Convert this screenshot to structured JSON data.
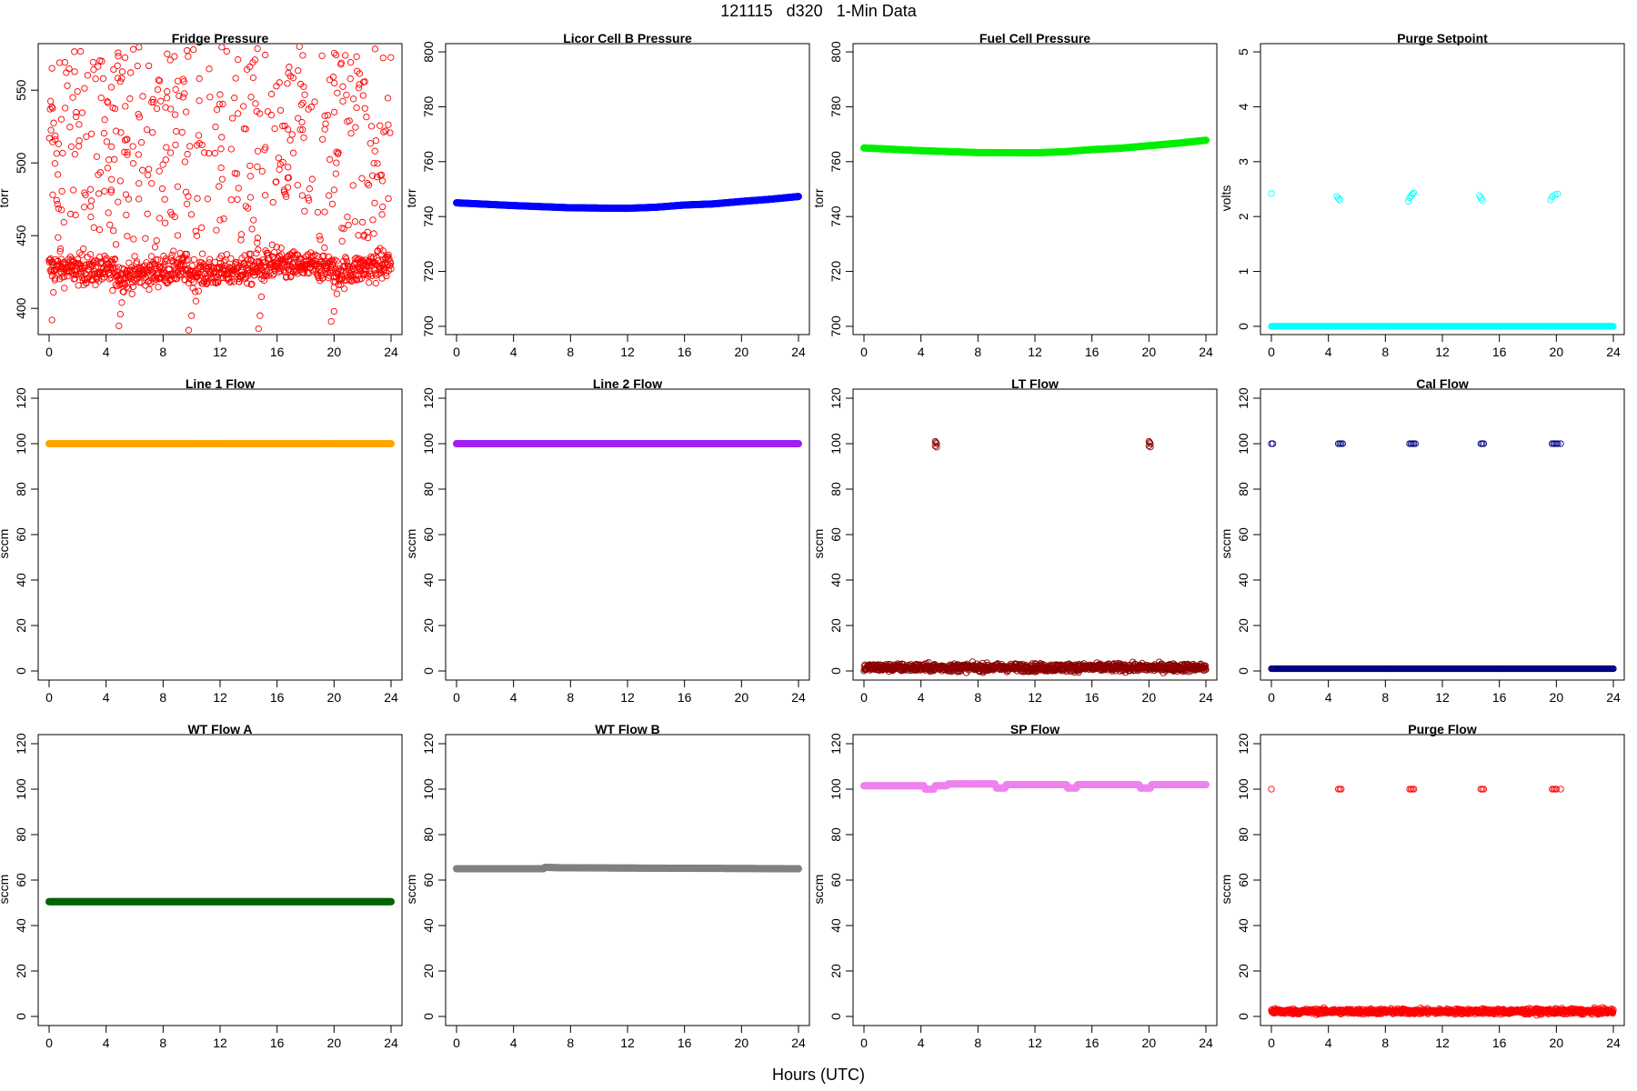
{
  "figure": {
    "title": "121115   d320   1-Min Data",
    "x_caption": "Hours (UTC)"
  },
  "chart_data": [
    {
      "type": "scatter",
      "title": "Fridge Pressure",
      "ylabel": "torr",
      "xlim": [
        0,
        24
      ],
      "ylim": [
        382,
        582
      ],
      "xticks": [
        0,
        4,
        8,
        12,
        16,
        20,
        24
      ],
      "yticks": [
        400,
        450,
        500,
        550
      ],
      "color": "#ff0000",
      "filled": false,
      "series": [
        {
          "pattern": "noisy",
          "points": [
            [
              0,
              428
            ],
            [
              4.7,
              425
            ],
            [
              5.0,
              422
            ],
            [
              9.5,
              428
            ],
            [
              10.0,
              424
            ],
            [
              14.8,
              427
            ],
            [
              15.2,
              429
            ],
            [
              19.7,
              429
            ],
            [
              20.0,
              424
            ],
            [
              24,
              431
            ]
          ],
          "noise": 7,
          "count": 900
        },
        {
          "pattern": "scatter-band",
          "range": [
            440,
            580
          ],
          "xrange": [
            0,
            24
          ],
          "count": 420
        },
        {
          "pattern": "dips",
          "points": [
            [
              0.2,
              392
            ],
            [
              0.3,
              411
            ],
            [
              4.9,
              388
            ],
            [
              5.0,
              396
            ],
            [
              5.1,
              404
            ],
            [
              9.8,
              385
            ],
            [
              10.0,
              395
            ],
            [
              10.3,
              405
            ],
            [
              14.7,
              386
            ],
            [
              14.8,
              395
            ],
            [
              14.9,
              408
            ],
            [
              19.8,
              391
            ],
            [
              20.0,
              398
            ],
            [
              20.2,
              410
            ]
          ]
        }
      ]
    },
    {
      "type": "line",
      "title": "Licor Cell B Pressure",
      "ylabel": "torr",
      "xlim": [
        0,
        24
      ],
      "ylim": [
        697,
        803
      ],
      "xticks": [
        0,
        4,
        8,
        12,
        16,
        20,
        24
      ],
      "yticks": [
        700,
        720,
        740,
        760,
        780,
        800
      ],
      "color": "#0000ff",
      "filled": true,
      "series": [
        {
          "pattern": "curve",
          "points": [
            [
              0,
              745
            ],
            [
              4,
              744
            ],
            [
              8,
              743.2
            ],
            [
              12,
              743
            ],
            [
              14,
              743.4
            ],
            [
              16,
              744.2
            ],
            [
              18,
              744.6
            ],
            [
              20,
              745.5
            ],
            [
              22,
              746.3
            ],
            [
              24,
              747.3
            ]
          ]
        }
      ]
    },
    {
      "type": "line",
      "title": "Fuel Cell Pressure",
      "ylabel": "torr",
      "xlim": [
        0,
        24
      ],
      "ylim": [
        697,
        803
      ],
      "xticks": [
        0,
        4,
        8,
        12,
        16,
        20,
        24
      ],
      "yticks": [
        700,
        720,
        740,
        760,
        780,
        800
      ],
      "color": "#00ee00",
      "filled": true,
      "series": [
        {
          "pattern": "curve",
          "points": [
            [
              0,
              765
            ],
            [
              4,
              764
            ],
            [
              8,
              763.3
            ],
            [
              12,
              763.2
            ],
            [
              14,
              763.6
            ],
            [
              16,
              764.4
            ],
            [
              18,
              764.9
            ],
            [
              20,
              765.8
            ],
            [
              22,
              766.7
            ],
            [
              24,
              767.8
            ]
          ]
        }
      ]
    },
    {
      "type": "scatter",
      "title": "Purge Setpoint",
      "ylabel": "volts",
      "xlim": [
        0,
        24
      ],
      "ylim": [
        -0.15,
        5.15
      ],
      "xticks": [
        0,
        4,
        8,
        12,
        16,
        20,
        24
      ],
      "yticks": [
        0,
        1,
        2,
        3,
        4,
        5
      ],
      "color": "#00ffff",
      "filled": false,
      "series": [
        {
          "pattern": "curve",
          "points": [
            [
              0,
              0
            ],
            [
              24,
              0
            ]
          ]
        },
        {
          "pattern": "dips",
          "points": [
            [
              0.0,
              2.42
            ],
            [
              4.6,
              2.37
            ],
            [
              4.7,
              2.33
            ],
            [
              4.8,
              2.3
            ],
            [
              9.6,
              2.28
            ],
            [
              9.7,
              2.34
            ],
            [
              9.8,
              2.38
            ],
            [
              9.9,
              2.41
            ],
            [
              10.0,
              2.43
            ],
            [
              14.6,
              2.38
            ],
            [
              14.7,
              2.34
            ],
            [
              14.8,
              2.3
            ],
            [
              19.6,
              2.3
            ],
            [
              19.7,
              2.36
            ],
            [
              19.9,
              2.4
            ],
            [
              20.1,
              2.41
            ]
          ]
        }
      ]
    },
    {
      "type": "line",
      "title": "Line 1 Flow",
      "ylabel": "sccm",
      "xlim": [
        0,
        24
      ],
      "ylim": [
        -4,
        124
      ],
      "xticks": [
        0,
        4,
        8,
        12,
        16,
        20,
        24
      ],
      "yticks": [
        0,
        20,
        40,
        60,
        80,
        100,
        120
      ],
      "color": "#ffa500",
      "filled": true,
      "series": [
        {
          "pattern": "curve",
          "points": [
            [
              0,
              100
            ],
            [
              24,
              100
            ]
          ]
        }
      ]
    },
    {
      "type": "line",
      "title": "Line 2 Flow",
      "ylabel": "sccm",
      "xlim": [
        0,
        24
      ],
      "ylim": [
        -4,
        124
      ],
      "xticks": [
        0,
        4,
        8,
        12,
        16,
        20,
        24
      ],
      "yticks": [
        0,
        20,
        40,
        60,
        80,
        100,
        120
      ],
      "color": "#a020f0",
      "filled": true,
      "series": [
        {
          "pattern": "curve",
          "points": [
            [
              0,
              100
            ],
            [
              24,
              100
            ]
          ]
        }
      ]
    },
    {
      "type": "scatter",
      "title": "LT Flow",
      "ylabel": "sccm",
      "xlim": [
        0,
        24
      ],
      "ylim": [
        -4,
        124
      ],
      "xticks": [
        0,
        4,
        8,
        12,
        16,
        20,
        24
      ],
      "yticks": [
        0,
        20,
        40,
        60,
        80,
        100,
        120
      ],
      "color": "#8b0000",
      "filled": false,
      "series": [
        {
          "pattern": "noisy",
          "points": [
            [
              0,
              1.5
            ],
            [
              24,
              1.5
            ]
          ],
          "noise": 1.2,
          "count": 1100
        },
        {
          "pattern": "dips",
          "points": [
            [
              5.0,
              101
            ],
            [
              5.1,
              100
            ],
            [
              5.0,
              99
            ],
            [
              5.1,
              98.5
            ],
            [
              5.05,
              100.5
            ],
            [
              20.0,
              101
            ],
            [
              20.1,
              100
            ],
            [
              20.0,
              99
            ],
            [
              20.1,
              98.5
            ],
            [
              20.05,
              100.5
            ]
          ]
        }
      ]
    },
    {
      "type": "scatter",
      "title": "Cal Flow",
      "ylabel": "sccm",
      "xlim": [
        0,
        24
      ],
      "ylim": [
        -4,
        124
      ],
      "xticks": [
        0,
        4,
        8,
        12,
        16,
        20,
        24
      ],
      "yticks": [
        0,
        20,
        40,
        60,
        80,
        100,
        120
      ],
      "color": "#000080",
      "filled": false,
      "series": [
        {
          "pattern": "curve",
          "points": [
            [
              0,
              1
            ],
            [
              24,
              1
            ]
          ]
        },
        {
          "pattern": "dips",
          "points": [
            [
              0.0,
              100
            ],
            [
              0.1,
              100
            ],
            [
              4.7,
              100
            ],
            [
              4.8,
              100
            ],
            [
              4.9,
              100
            ],
            [
              5.0,
              100
            ],
            [
              9.7,
              100
            ],
            [
              9.8,
              100
            ],
            [
              9.9,
              100
            ],
            [
              10.0,
              100
            ],
            [
              10.1,
              100
            ],
            [
              14.7,
              100
            ],
            [
              14.8,
              100
            ],
            [
              14.9,
              100
            ],
            [
              19.7,
              100
            ],
            [
              19.8,
              100
            ],
            [
              19.9,
              100
            ],
            [
              20.0,
              100
            ],
            [
              20.1,
              100
            ],
            [
              20.3,
              100
            ]
          ]
        }
      ]
    },
    {
      "type": "line",
      "title": "WT Flow A",
      "ylabel": "sccm",
      "xlim": [
        0,
        24
      ],
      "ylim": [
        -4,
        124
      ],
      "xticks": [
        0,
        4,
        8,
        12,
        16,
        20,
        24
      ],
      "yticks": [
        0,
        20,
        40,
        60,
        80,
        100,
        120
      ],
      "color": "#006400",
      "filled": true,
      "series": [
        {
          "pattern": "curve",
          "points": [
            [
              0,
              50.5
            ],
            [
              24,
              50.5
            ]
          ]
        }
      ]
    },
    {
      "type": "line",
      "title": "WT Flow B",
      "ylabel": "sccm",
      "xlim": [
        0,
        24
      ],
      "ylim": [
        -4,
        124
      ],
      "xticks": [
        0,
        4,
        8,
        12,
        16,
        20,
        24
      ],
      "yticks": [
        0,
        20,
        40,
        60,
        80,
        100,
        120
      ],
      "color": "#808080",
      "filled": true,
      "series": [
        {
          "pattern": "curve",
          "points": [
            [
              0,
              65
            ],
            [
              6.1,
              65
            ],
            [
              6.2,
              65.6
            ],
            [
              7.5,
              65.4
            ],
            [
              24,
              65
            ]
          ]
        }
      ]
    },
    {
      "type": "line",
      "title": "SP Flow",
      "ylabel": "sccm",
      "xlim": [
        0,
        24
      ],
      "ylim": [
        -4,
        124
      ],
      "xticks": [
        0,
        4,
        8,
        12,
        16,
        20,
        24
      ],
      "yticks": [
        0,
        20,
        40,
        60,
        80,
        100,
        120
      ],
      "color": "#ee82ee",
      "filled": true,
      "series": [
        {
          "pattern": "curve",
          "points": [
            [
              0,
              101.5
            ],
            [
              4.2,
              101.5
            ],
            [
              4.3,
              100
            ],
            [
              4.9,
              100
            ],
            [
              5.0,
              101.5
            ],
            [
              5.8,
              101.5
            ],
            [
              5.9,
              102.3
            ],
            [
              9.2,
              102.3
            ],
            [
              9.3,
              100.5
            ],
            [
              9.9,
              100.5
            ],
            [
              10.0,
              102
            ],
            [
              14.2,
              102
            ],
            [
              14.3,
              100.5
            ],
            [
              14.9,
              100.5
            ],
            [
              15.0,
              102
            ],
            [
              19.3,
              102
            ],
            [
              19.4,
              100.5
            ],
            [
              20.1,
              100.5
            ],
            [
              20.2,
              102
            ],
            [
              24,
              102
            ]
          ]
        }
      ]
    },
    {
      "type": "scatter",
      "title": "Purge Flow",
      "ylabel": "sccm",
      "xlim": [
        0,
        24
      ],
      "ylim": [
        -4,
        124
      ],
      "xticks": [
        0,
        4,
        8,
        12,
        16,
        20,
        24
      ],
      "yticks": [
        0,
        20,
        40,
        60,
        80,
        100,
        120
      ],
      "color": "#ff0000",
      "filled": false,
      "series": [
        {
          "pattern": "noisy",
          "points": [
            [
              0,
              2.2
            ],
            [
              24,
              2.2
            ]
          ],
          "noise": 0.8,
          "count": 1100
        },
        {
          "pattern": "dips",
          "points": [
            [
              0.0,
              100
            ],
            [
              4.7,
              100
            ],
            [
              4.8,
              100
            ],
            [
              4.9,
              100
            ],
            [
              9.7,
              100
            ],
            [
              9.8,
              100
            ],
            [
              9.9,
              100
            ],
            [
              10.0,
              100
            ],
            [
              14.7,
              100
            ],
            [
              14.8,
              100
            ],
            [
              14.9,
              100
            ],
            [
              19.7,
              100
            ],
            [
              19.8,
              100
            ],
            [
              19.9,
              100
            ],
            [
              20.0,
              100
            ],
            [
              20.3,
              100
            ]
          ]
        }
      ]
    }
  ]
}
